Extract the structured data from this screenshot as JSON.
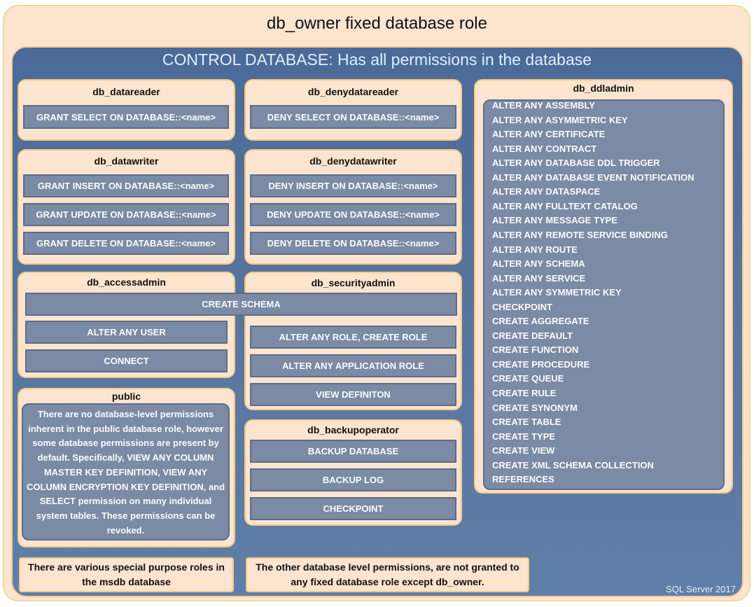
{
  "title": "db_owner fixed database role",
  "control": "CONTROL DATABASE: Has all permissions in the database",
  "datareader": {
    "title": "db_datareader",
    "perms": [
      "GRANT SELECT  ON DATABASE::<name>"
    ]
  },
  "denydatareader": {
    "title": "db_denydatareader",
    "perms": [
      "DENY SELECT ON DATABASE::<name>"
    ]
  },
  "datawriter": {
    "title": "db_datawriter",
    "perms": [
      "GRANT INSERT  ON DATABASE::<name>",
      "GRANT UPDATE  ON DATABASE::<name>",
      "GRANT DELETE  ON DATABASE::<name>"
    ]
  },
  "denydatawriter": {
    "title": "db_denydatawriter",
    "perms": [
      "DENY INSERT ON DATABASE::<name>",
      "DENY UPDATE ON DATABASE::<name>",
      "DENY DELETE ON DATABASE::<name>"
    ]
  },
  "accessadmin": {
    "title": "db_accessadmin",
    "perms": [
      "ALTER ANY USER",
      "CONNECT"
    ]
  },
  "shared": "CREATE SCHEMA",
  "securityadmin": {
    "title": "db_securityadmin",
    "perms": [
      "ALTER ANY ROLE, CREATE ROLE",
      "ALTER ANY APPLICATION ROLE",
      "VIEW DEFINITON"
    ]
  },
  "backupoperator": {
    "title": "db_backupoperator",
    "perms": [
      "BACKUP  DATABASE",
      "BACKUP  LOG",
      "CHECKPOINT"
    ]
  },
  "public": {
    "title": "public",
    "text": "There are no database-level permissions inherent in the public database role, however some database permissions are present by default. Specifically,  VIEW ANY COLUMN MASTER KEY DEFINITION, VIEW ANY COLUMN ENCRYPTION KEY DEFINITION, and SELECT permission on many individual  system tables. These permissions can be revoked."
  },
  "ddladmin": {
    "title": "db_ddladmin",
    "perms": [
      "ALTER ANY ASSEMBLY",
      "ALTER ANY ASYMMETRIC  KEY",
      "ALTER ANY CERTIFICATE",
      "ALTER ANY CONTRACT",
      "ALTER ANY DATABASE DDL TRIGGER",
      "ALTER ANY DATABASE EVENT  NOTIFICATION",
      "ALTER ANY DATASPACE",
      "ALTER ANY FULLTEXT CATALOG",
      "ALTER ANY MESSAGE  TYPE",
      "ALTER ANY REMOTE  SERVICE BINDING",
      "ALTER ANY ROUTE",
      "ALTER ANY SCHEMA",
      "ALTER ANY SERVICE",
      "ALTER ANY SYMMETRIC  KEY",
      "CHECKPOINT",
      "CREATE  AGGREGATE",
      "CREATE  DEFAULT",
      "CREATE  FUNCTION",
      "CREATE  PROCEDURE",
      "CREATE  QUEUE",
      "CREATE  RULE",
      "CREATE  SYNONYM",
      "CREATE  TABLE",
      "CREATE  TYPE",
      "CREATE  VIEW",
      "CREATE  XML  SCHEMA  COLLECTION",
      "REFERENCES"
    ]
  },
  "note_msdb": "There are various special  purpose roles in the msdb database",
  "note_other": "The other database level permissions, are not granted to any fixed database role except db_owner.",
  "footer": "SQL Server 2017"
}
